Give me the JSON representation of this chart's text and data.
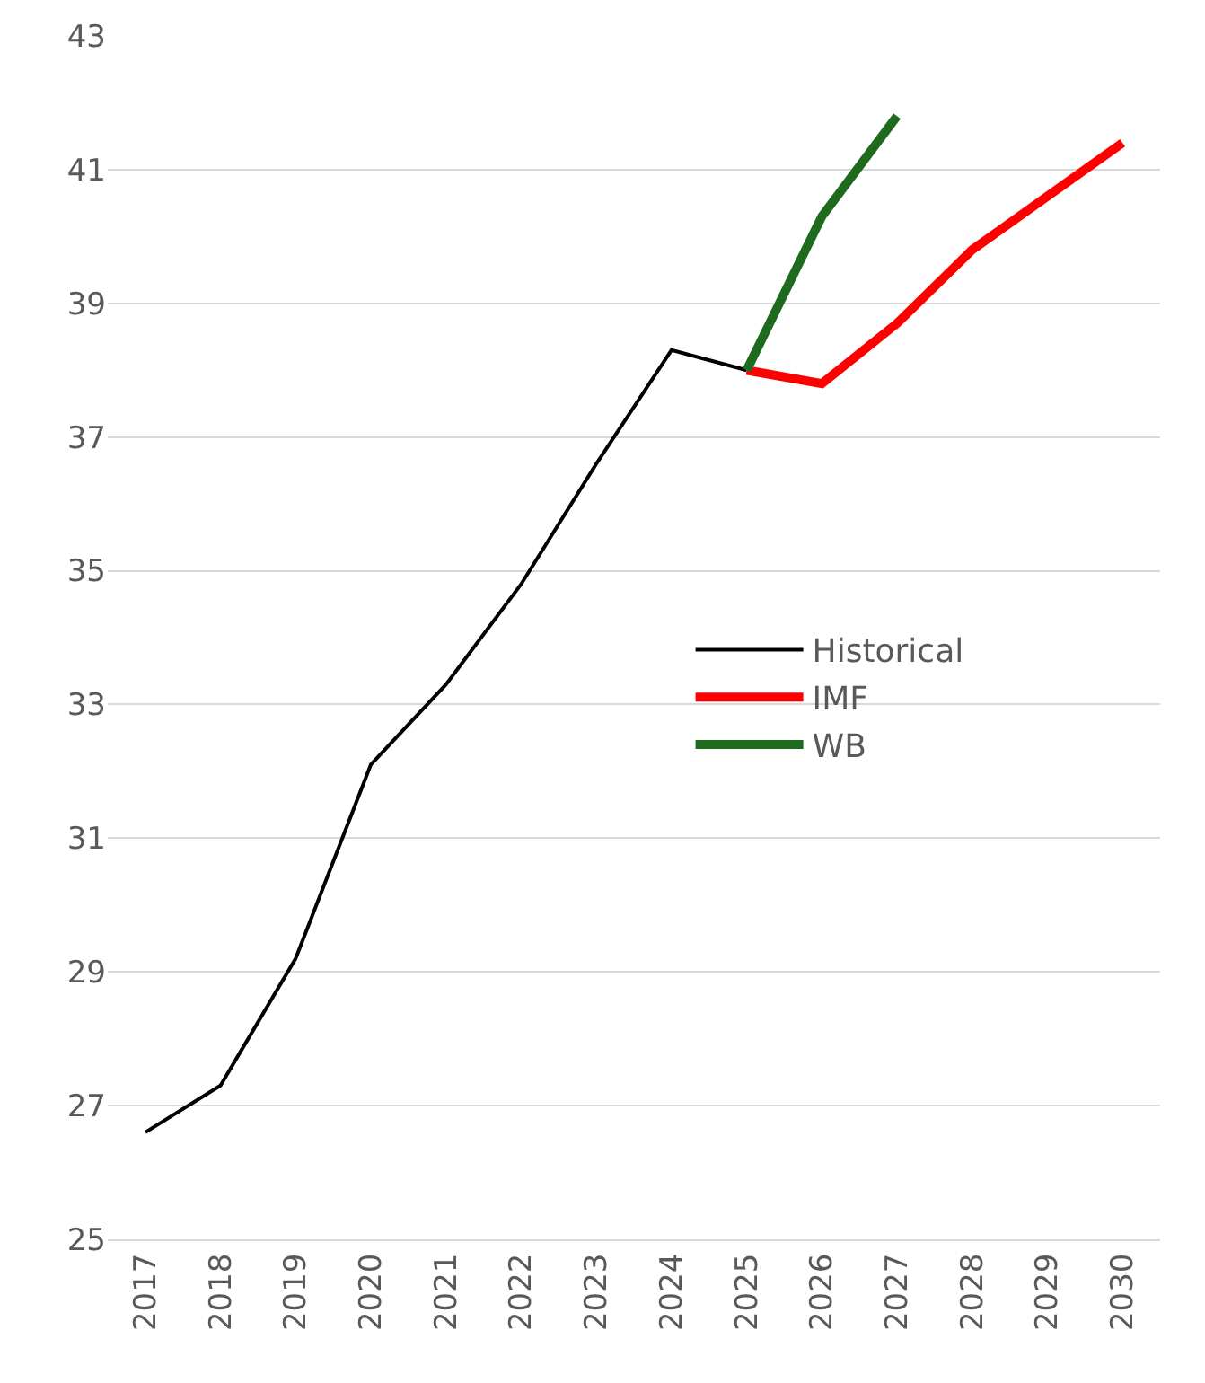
{
  "chart_data": {
    "type": "line",
    "categories": [
      "2017",
      "2018",
      "2019",
      "2020",
      "2021",
      "2022",
      "2023",
      "2024",
      "2025",
      "2026",
      "2027",
      "2028",
      "2029",
      "2030"
    ],
    "series": [
      {
        "name": "Historical",
        "color": "#000000",
        "values": [
          26.6,
          27.3,
          29.2,
          32.1,
          33.3,
          34.8,
          36.6,
          38.3,
          38.0,
          null,
          null,
          null,
          null,
          null
        ]
      },
      {
        "name": "IMF",
        "color": "#ff0000",
        "values": [
          null,
          null,
          null,
          null,
          null,
          null,
          null,
          null,
          38.0,
          37.8,
          38.7,
          39.8,
          40.6,
          41.4
        ]
      },
      {
        "name": "WB",
        "color": "#1e6b1e",
        "values": [
          null,
          null,
          null,
          null,
          null,
          null,
          null,
          null,
          38.0,
          40.3,
          41.8,
          null,
          null,
          null
        ]
      }
    ],
    "ylim": [
      25,
      43
    ],
    "yticks": [
      25,
      27,
      29,
      31,
      33,
      35,
      37,
      39,
      41,
      43
    ],
    "grid": "y",
    "legend": "right",
    "marker": "none",
    "line_style": "solid"
  }
}
